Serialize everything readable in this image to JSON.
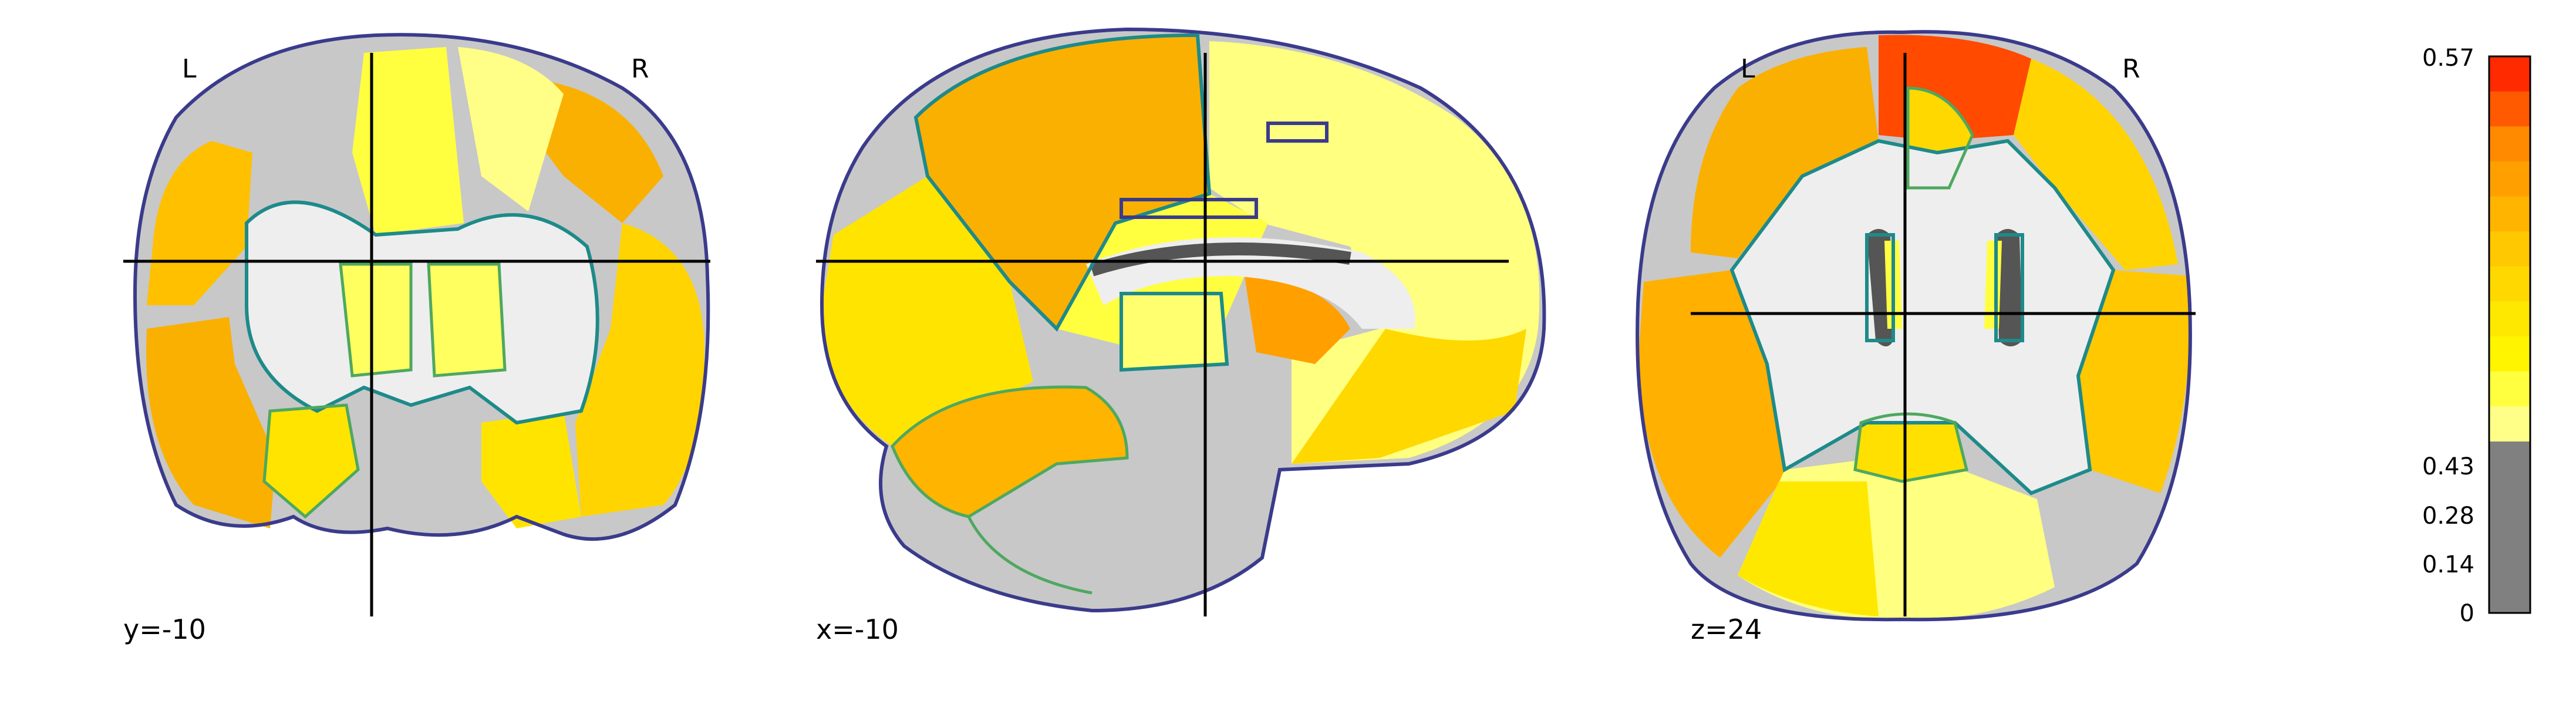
{
  "views": [
    {
      "id": "coronal",
      "coord_label": "y=-10",
      "left_label": "L",
      "right_label": "R"
    },
    {
      "id": "sagittal",
      "coord_label": "x=-10"
    },
    {
      "id": "axial",
      "coord_label": "z=24",
      "left_label": "L",
      "right_label": "R"
    }
  ],
  "colorbar": {
    "max_label": "0.57",
    "threshold_label": "0.43",
    "tick_labels": [
      "0.28",
      "0.14",
      "0"
    ],
    "colors": [
      "#ff2a00",
      "#ff5a00",
      "#ff8a00",
      "#ffa000",
      "#ffb400",
      "#ffc800",
      "#ffd800",
      "#ffe800",
      "#fff500",
      "#ffff40",
      "#ffff88"
    ],
    "below_threshold_color": "#808080"
  },
  "palette": {
    "orange": "#fab000",
    "yellow": "#ffe400",
    "pale_yellow": "#ffff78",
    "gray": "#c8c8c8",
    "white_matter": "#eeeeee",
    "outline_navy": "#3b3b8c",
    "outline_teal": "#1e8a8a",
    "outline_green": "#4ea860"
  }
}
